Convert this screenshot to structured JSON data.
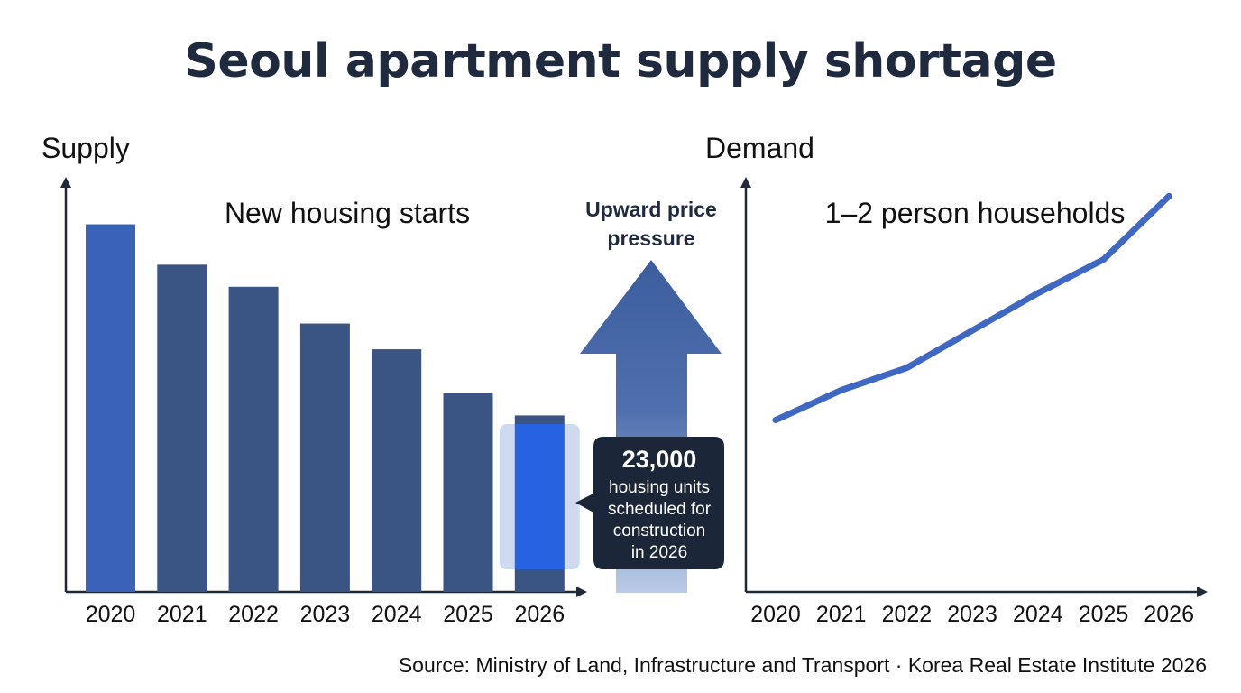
{
  "title": "Seoul apartment supply shortage",
  "source": "Source: Ministry of Land, Infrastructure and Transport · Korea Real Estate Institute 2026",
  "arrow_label": [
    "Upward price",
    "pressure"
  ],
  "chart_data": [
    {
      "type": "bar",
      "title": "New housing starts",
      "ylabel": "Supply",
      "xlabel": "",
      "categories": [
        "2020",
        "2021",
        "2022",
        "2023",
        "2024",
        "2025",
        "2026"
      ],
      "values": [
        100,
        89,
        83,
        73,
        66,
        54,
        48
      ],
      "ylim": [
        0,
        107
      ],
      "highlight": {
        "category": "2026",
        "value": "23,000",
        "text": [
          "housing units",
          "scheduled for",
          "construction",
          "in 2026"
        ]
      }
    },
    {
      "type": "line",
      "title": "1–2 person households",
      "ylabel": "Demand",
      "xlabel": "",
      "x": [
        "2020",
        "2021",
        "2022",
        "2023",
        "2024",
        "2025",
        "2026"
      ],
      "values": [
        46,
        54,
        60,
        70,
        80,
        89,
        106
      ],
      "ylim": [
        0,
        115
      ]
    }
  ],
  "colors": {
    "bar_first": "#3a63b8",
    "bar": "#3a5483",
    "bar_highlight": "#2563e0",
    "line": "#3f67c4",
    "callout": "#1b2738",
    "title": "#1f2a3f",
    "arrow_top": "#3d5e9e",
    "arrow_bottom": "#b9cbe6"
  }
}
